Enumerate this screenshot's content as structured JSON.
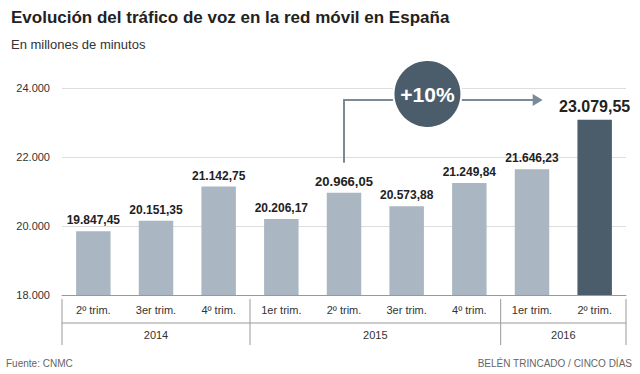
{
  "chart_data": {
    "type": "bar",
    "title": "Evolución del tráfico de voz en la red móvil en España",
    "subtitle": "En millones de minutos",
    "categories": [
      "2º trim.",
      "3er trim.",
      "4º trim.",
      "1er trim.",
      "2º trim.",
      "3er trim.",
      "4º trim.",
      "1er trim.",
      "2º trim."
    ],
    "year_groups": [
      {
        "label": "2014",
        "count": 3
      },
      {
        "label": "2015",
        "count": 4
      },
      {
        "label": "2016",
        "count": 2
      }
    ],
    "values": [
      19847.45,
      20151.35,
      21142.75,
      20206.17,
      20966.05,
      20573.88,
      21249.84,
      21646.23,
      23079.55
    ],
    "value_labels": [
      "19.847,45",
      "20.151,35",
      "21.142,75",
      "20.206,17",
      "20.966,05",
      "20.573,88",
      "21.249,84",
      "21.646,23",
      "23.079,55"
    ],
    "colors": [
      "#aab6c1",
      "#aab6c1",
      "#aab6c1",
      "#aab6c1",
      "#aab6c1",
      "#aab6c1",
      "#aab6c1",
      "#aab6c1",
      "#4b5d6b"
    ],
    "ylim": [
      18000,
      24000
    ],
    "yticks": [
      {
        "value": 18000,
        "label": "18.000"
      },
      {
        "value": 20000,
        "label": "20.000"
      },
      {
        "value": 22000,
        "label": "22.000"
      },
      {
        "value": 24000,
        "label": "24.000"
      }
    ],
    "grid": true,
    "data_labels": true,
    "annotations": [
      {
        "text": "+10%",
        "from": 4,
        "to": 8
      }
    ],
    "source": "Fuente: CNMC",
    "credit": "BELÉN TRINCADO / CINCO DÍAS"
  }
}
